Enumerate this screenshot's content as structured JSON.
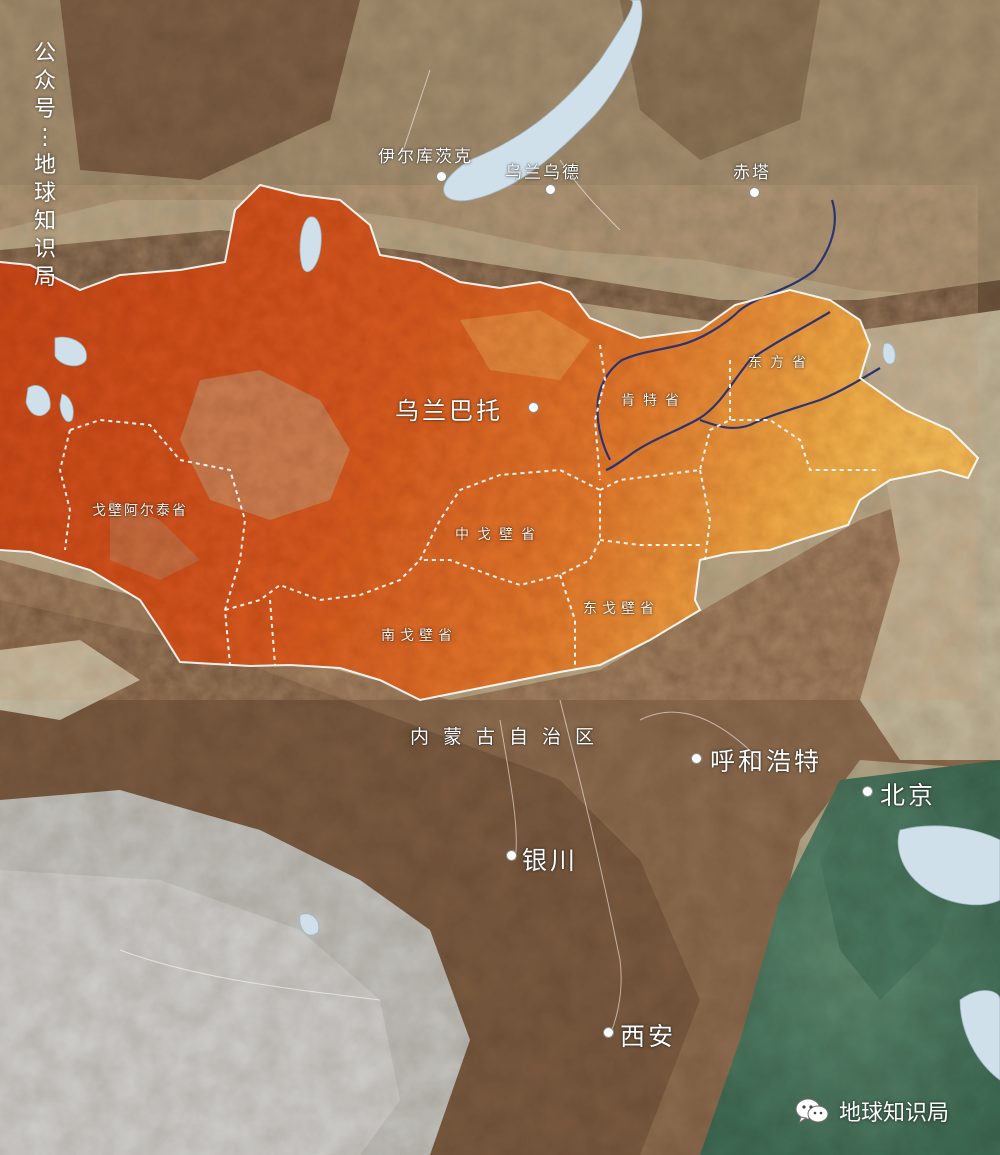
{
  "watermark": {
    "vertical": "公众号：地球知识局",
    "bottom": "地球知识局",
    "icon": "wechat-icon"
  },
  "cities": {
    "irkutsk": "伊尔库茨克",
    "ulan_ude": "乌兰乌德",
    "chita": "赤塔",
    "ulaanbaatar": "乌兰巴托",
    "hohhot": "呼和浩特",
    "beijing": "北京",
    "yinchuan": "银川",
    "xian": "西安"
  },
  "provinces": {
    "khentii": "肯特省",
    "dornod": "东方省",
    "govi_altai": "戈壁阿尔泰省",
    "dundgovi": "中戈壁省",
    "dornogovi": "东戈壁省",
    "umnugovi": "南戈壁省"
  },
  "region": {
    "inner_mongolia": "内蒙古自治区"
  },
  "colors": {
    "mongolia_fill": "#d2531c",
    "mongolia_east": "#eda542",
    "border": "#ffffff",
    "river": "#2b3470",
    "lake": "#cfe0ea",
    "plateau": "#8a6a4c",
    "plain": "#557f66",
    "tibet": "#c3c3c0"
  }
}
